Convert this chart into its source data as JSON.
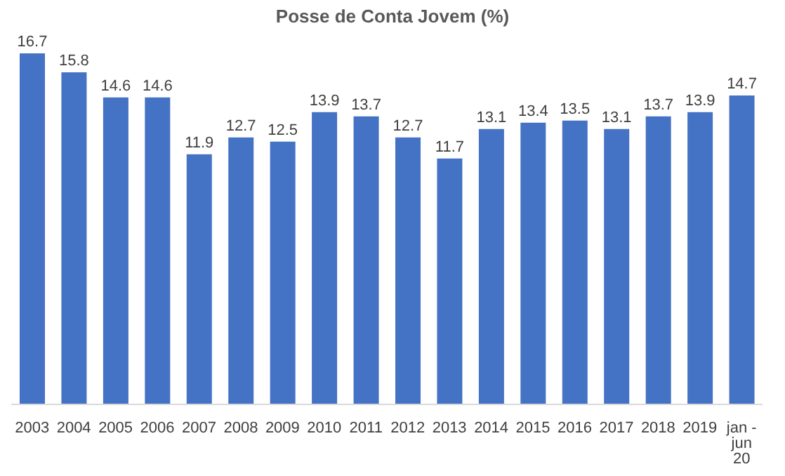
{
  "chart_data": {
    "type": "bar",
    "title": "Posse de Conta Jovem (%)",
    "categories": [
      "2003",
      "2004",
      "2005",
      "2006",
      "2007",
      "2008",
      "2009",
      "2010",
      "2011",
      "2012",
      "2013",
      "2014",
      "2015",
      "2016",
      "2017",
      "2018",
      "2019",
      "jan - jun 20"
    ],
    "values": [
      16.7,
      15.8,
      14.6,
      14.6,
      11.9,
      12.7,
      12.5,
      13.9,
      13.7,
      12.7,
      11.7,
      13.1,
      13.4,
      13.5,
      13.1,
      13.7,
      13.9,
      14.7
    ],
    "color": "#4472c4",
    "data_labels": true
  }
}
